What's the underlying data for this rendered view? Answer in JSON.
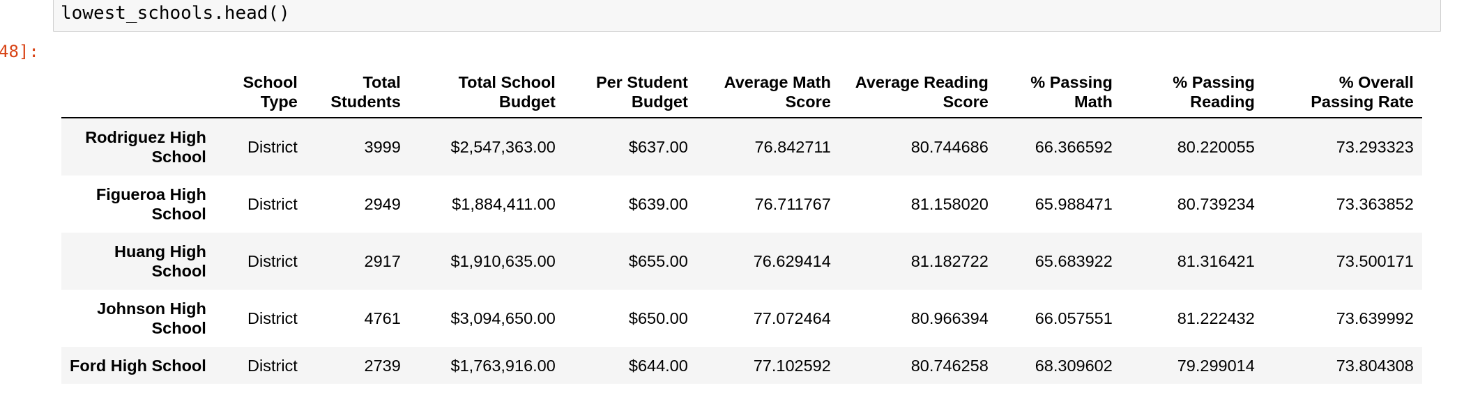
{
  "notebook": {
    "code_line": "lowest_schools.head()",
    "output_prompt": "48]:"
  },
  "table": {
    "columns": [
      {
        "line1": "",
        "line2": ""
      },
      {
        "line1": "School",
        "line2": "Type"
      },
      {
        "line1": "Total",
        "line2": "Students"
      },
      {
        "line1": "Total School",
        "line2": "Budget"
      },
      {
        "line1": "Per Student",
        "line2": "Budget"
      },
      {
        "line1": "Average Math",
        "line2": "Score"
      },
      {
        "line1": "Average Reading",
        "line2": "Score"
      },
      {
        "line1": "% Passing",
        "line2": "Math"
      },
      {
        "line1": "% Passing",
        "line2": "Reading"
      },
      {
        "line1": "% Overall",
        "line2": "Passing Rate"
      }
    ],
    "rows": [
      {
        "name_line1": "Rodriguez High",
        "name_line2": "School",
        "cells": [
          "District",
          "3999",
          "$2,547,363.00",
          "$637.00",
          "76.842711",
          "80.744686",
          "66.366592",
          "80.220055",
          "73.293323"
        ]
      },
      {
        "name_line1": "Figueroa High",
        "name_line2": "School",
        "cells": [
          "District",
          "2949",
          "$1,884,411.00",
          "$639.00",
          "76.711767",
          "81.158020",
          "65.988471",
          "80.739234",
          "73.363852"
        ]
      },
      {
        "name_line1": "Huang High",
        "name_line2": "School",
        "cells": [
          "District",
          "2917",
          "$1,910,635.00",
          "$655.00",
          "76.629414",
          "81.182722",
          "65.683922",
          "81.316421",
          "73.500171"
        ]
      },
      {
        "name_line1": "Johnson High",
        "name_line2": "School",
        "cells": [
          "District",
          "4761",
          "$3,094,650.00",
          "$650.00",
          "77.072464",
          "80.966394",
          "66.057551",
          "81.222432",
          "73.639992"
        ]
      },
      {
        "name_line1": "Ford High School",
        "name_line2": "",
        "cells": [
          "District",
          "2739",
          "$1,763,916.00",
          "$644.00",
          "77.102592",
          "80.746258",
          "68.309602",
          "79.299014",
          "73.804308"
        ]
      }
    ]
  }
}
